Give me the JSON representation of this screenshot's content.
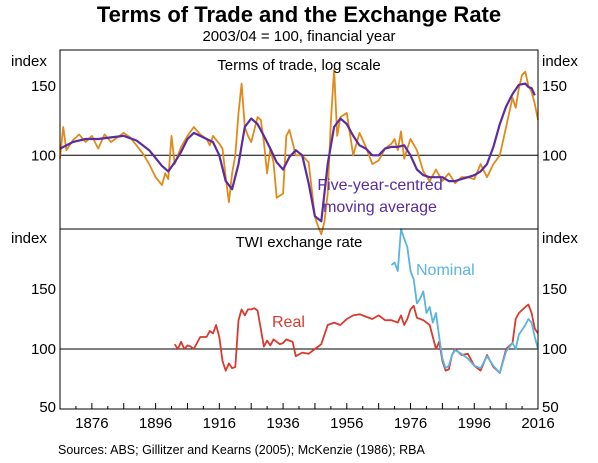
{
  "title": "Terms of Trade and the Exchange Rate",
  "subtitle": "2003/04 = 100, financial year",
  "sources": "Sources:   ABS; Gillitzer and Kearns (2005); McKenzie (1986); RBA",
  "colors": {
    "tot": "#e08a1a",
    "ma": "#5a2ca0",
    "nominal": "#5ab4e0",
    "real": "#d83a2e",
    "ref": "#000000"
  },
  "chart_data": [
    {
      "type": "line",
      "title": "Terms of trade, log scale",
      "ylabel_left": "index",
      "ylabel_right": "index",
      "yscale": "log",
      "ylim": [
        65,
        185
      ],
      "yticks": [
        100,
        150
      ],
      "reference_line": 100,
      "annotations": [
        "Five-year-centred",
        "moving average"
      ],
      "series": [
        {
          "key": "tot",
          "x": [
            1866,
            1867,
            1868,
            1870,
            1872,
            1874,
            1876,
            1878,
            1880,
            1882,
            1884,
            1886,
            1888,
            1890,
            1892,
            1894,
            1896,
            1898,
            1899,
            1900,
            1901,
            1902,
            1904,
            1906,
            1908,
            1910,
            1912,
            1913,
            1914,
            1916,
            1917,
            1918,
            1919,
            1920,
            1921,
            1922,
            1923,
            1924,
            1925,
            1926,
            1928,
            1929,
            1930,
            1931,
            1932,
            1933,
            1934,
            1936,
            1937,
            1938,
            1940,
            1942,
            1944,
            1946,
            1947,
            1948,
            1949,
            1950,
            1951,
            1952,
            1953,
            1954,
            1956,
            1958,
            1960,
            1962,
            1964,
            1966,
            1968,
            1970,
            1971,
            1972,
            1973,
            1974,
            1975,
            1976,
            1978,
            1980,
            1982,
            1984,
            1986,
            1988,
            1990,
            1992,
            1994,
            1996,
            1998,
            2000,
            2002,
            2004,
            2006,
            2008,
            2009,
            2010,
            2011,
            2012,
            2013,
            2014,
            2015,
            2016
          ],
          "values": [
            98,
            118,
            103,
            109,
            113,
            108,
            112,
            104,
            113,
            108,
            111,
            114,
            111,
            106,
            101,
            95,
            88,
            84,
            90,
            87,
            112,
            95,
            105,
            112,
            118,
            113,
            110,
            106,
            112,
            107,
            104,
            88,
            76,
            90,
            100,
            128,
            152,
            118,
            112,
            108,
            125,
            123,
            108,
            90,
            104,
            96,
            78,
            80,
            112,
            116,
            100,
            100,
            96,
            70,
            66,
            63,
            68,
            80,
            122,
            165,
            112,
            125,
            128,
            100,
            114,
            105,
            95,
            97,
            104,
            107,
            110,
            103,
            115,
            98,
            104,
            110,
            103,
            91,
            86,
            92,
            86,
            90,
            85,
            88,
            88,
            87,
            95,
            88,
            95,
            100,
            118,
            140,
            132,
            148,
            160,
            163,
            150,
            145,
            135,
            123
          ]
        },
        {
          "key": "ma",
          "x": [
            1866,
            1870,
            1874,
            1878,
            1882,
            1886,
            1890,
            1894,
            1898,
            1900,
            1902,
            1904,
            1906,
            1908,
            1910,
            1912,
            1914,
            1916,
            1918,
            1920,
            1922,
            1924,
            1926,
            1928,
            1930,
            1932,
            1934,
            1936,
            1938,
            1940,
            1942,
            1944,
            1946,
            1948,
            1950,
            1952,
            1954,
            1956,
            1958,
            1960,
            1962,
            1964,
            1966,
            1968,
            1970,
            1972,
            1974,
            1976,
            1978,
            1980,
            1982,
            1984,
            1986,
            1988,
            1990,
            1992,
            1994,
            1996,
            1998,
            2000,
            2002,
            2004,
            2006,
            2008,
            2010,
            2012,
            2013,
            2014,
            2015
          ],
          "values": [
            104,
            108,
            110,
            110,
            111,
            112,
            109,
            103,
            94,
            91,
            96,
            102,
            110,
            114,
            112,
            110,
            108,
            100,
            86,
            82,
            95,
            118,
            124,
            120,
            112,
            104,
            96,
            92,
            99,
            103,
            100,
            85,
            70,
            68,
            95,
            118,
            124,
            120,
            112,
            106,
            104,
            100,
            100,
            104,
            105,
            105,
            106,
            100,
            92,
            89,
            88,
            88,
            88,
            86,
            86,
            87,
            88,
            89,
            91,
            95,
            105,
            120,
            133,
            143,
            151,
            152,
            149,
            148,
            142
          ]
        }
      ]
    },
    {
      "type": "line",
      "title": "TWI exchange rate",
      "ylabel_left": "index",
      "ylabel_right": "index",
      "ylim": [
        50,
        200
      ],
      "yticks": [
        50,
        100,
        150
      ],
      "reference_line": 100,
      "xlim": [
        1866,
        2016
      ],
      "xticks": [
        1876,
        1896,
        1916,
        1936,
        1956,
        1976,
        1996,
        2016
      ],
      "series": [
        {
          "name": "Real",
          "key": "real",
          "x": [
            1902,
            1903,
            1904,
            1905,
            1906,
            1907,
            1908,
            1910,
            1912,
            1913,
            1914,
            1915,
            1916,
            1917,
            1918,
            1919,
            1920,
            1921,
            1922,
            1923,
            1924,
            1925,
            1926,
            1927,
            1928,
            1930,
            1931,
            1932,
            1933,
            1934,
            1935,
            1936,
            1937,
            1938,
            1939,
            1940,
            1942,
            1944,
            1946,
            1948,
            1950,
            1952,
            1954,
            1956,
            1958,
            1960,
            1962,
            1964,
            1966,
            1968,
            1970,
            1972,
            1973,
            1974,
            1975,
            1976,
            1977,
            1978,
            1980,
            1982,
            1984,
            1985,
            1986,
            1987,
            1988,
            1989,
            1990,
            1992,
            1994,
            1996,
            1998,
            2000,
            2002,
            2004,
            2006,
            2008,
            2009,
            2010,
            2012,
            2013,
            2014,
            2015,
            2016
          ],
          "values": [
            104,
            100,
            106,
            100,
            103,
            102,
            100,
            110,
            110,
            115,
            113,
            120,
            110,
            90,
            82,
            88,
            84,
            85,
            124,
            133,
            128,
            133,
            133,
            134,
            132,
            102,
            107,
            103,
            108,
            106,
            104,
            105,
            108,
            107,
            106,
            94,
            97,
            96,
            100,
            104,
            120,
            122,
            120,
            125,
            128,
            129,
            127,
            125,
            128,
            124,
            124,
            122,
            128,
            120,
            125,
            133,
            136,
            126,
            124,
            120,
            100,
            106,
            90,
            82,
            83,
            95,
            100,
            95,
            96,
            86,
            82,
            95,
            85,
            80,
            100,
            105,
            125,
            130,
            135,
            137,
            130,
            117,
            113
          ]
        },
        {
          "name": "Nominal",
          "key": "nominal",
          "x": [
            1970,
            1971,
            1972,
            1973,
            1974,
            1975,
            1976,
            1977,
            1978,
            1979,
            1980,
            1981,
            1982,
            1983,
            1984,
            1985,
            1986,
            1987,
            1988,
            1989,
            1990,
            1992,
            1994,
            1996,
            1998,
            2000,
            2002,
            2004,
            2006,
            2008,
            2009,
            2010,
            2012,
            2013,
            2014,
            2015,
            2016
          ],
          "values": [
            170,
            172,
            165,
            200,
            192,
            185,
            165,
            158,
            138,
            142,
            148,
            130,
            135,
            122,
            130,
            110,
            92,
            84,
            86,
            95,
            99,
            96,
            92,
            86,
            84,
            94,
            86,
            80,
            98,
            105,
            100,
            112,
            120,
            125,
            122,
            110,
            100
          ]
        }
      ]
    }
  ]
}
